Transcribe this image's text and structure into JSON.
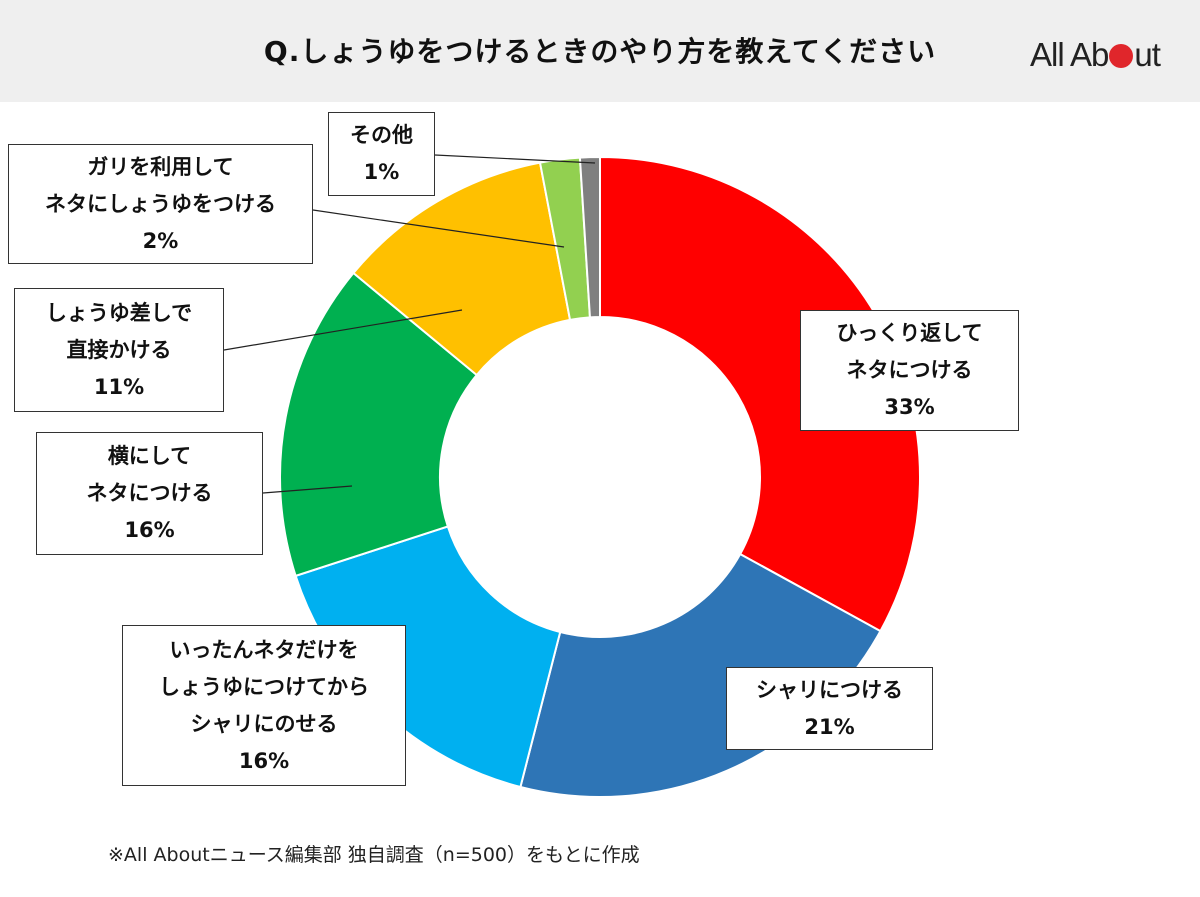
{
  "header": {
    "title": "Q.しょうゆをつけるときのやり方を教えてください",
    "logo": {
      "part1": "All Ab",
      "part2": "ut",
      "dot_color": "#e0262b"
    }
  },
  "chart_data": {
    "type": "pie",
    "donut": true,
    "title": "Q.しょうゆをつけるときのやり方を教えてください",
    "slices": [
      {
        "label": [
          "ひっくり返して",
          "ネタにつける"
        ],
        "value": 33,
        "value_label": "33%",
        "color": "#ff0000"
      },
      {
        "label": [
          "シャリにつける"
        ],
        "value": 21,
        "value_label": "21%",
        "color": "#2e75b6"
      },
      {
        "label": [
          "いったんネタだけを",
          "しょうゆにつけてから",
          "シャリにのせる"
        ],
        "value": 16,
        "value_label": "16%",
        "color": "#00b0f0"
      },
      {
        "label": [
          "横にして",
          "ネタにつける"
        ],
        "value": 16,
        "value_label": "16%",
        "color": "#00b050"
      },
      {
        "label": [
          "しょうゆ差しで",
          "直接かける"
        ],
        "value": 11,
        "value_label": "11%",
        "color": "#ffc000"
      },
      {
        "label": [
          "ガリを利用して",
          "ネタにしょうゆをつける"
        ],
        "value": 2,
        "value_label": "2%",
        "color": "#92d050"
      },
      {
        "label": [
          "その他"
        ],
        "value": 1,
        "value_label": "1%",
        "color": "#7f7f7f"
      }
    ]
  },
  "footnote": "※All Aboutニュース編集部 独自調査（n=500）をもとに作成"
}
